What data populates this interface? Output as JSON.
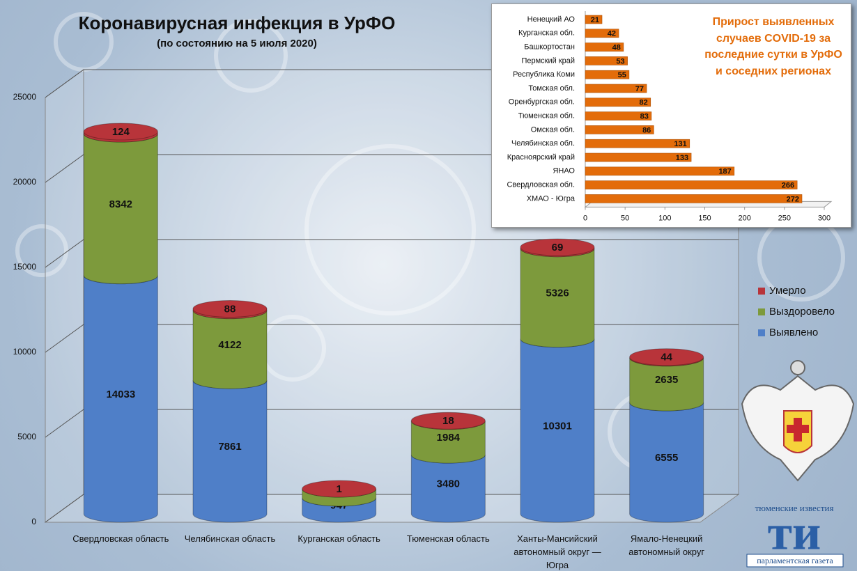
{
  "chart_data": [
    {
      "type": "bar",
      "stacked": true,
      "shape": "cylinder",
      "title": "Коронавирусная инфекция в УрФО",
      "subtitle": "(по состоянию на 5 июля 2020)",
      "categories": [
        "Свердловская область",
        "Челябинская область",
        "Курганская область",
        "Тюменская область",
        "Ханты-Мансийский автономный округ — Югра",
        "Ямало-Ненецкий автономный округ"
      ],
      "series": [
        {
          "name": "Выявлено",
          "color": "#4f7fc8",
          "values": [
            14033,
            7861,
            947,
            3480,
            10301,
            6555
          ]
        },
        {
          "name": "Выздоровело",
          "color": "#7d9a3c",
          "values": [
            8342,
            4122,
            528,
            1984,
            5326,
            2635
          ]
        },
        {
          "name": "Умерло",
          "color": "#b8343a",
          "values": [
            124,
            88,
            1,
            18,
            69,
            44
          ]
        }
      ],
      "ylim": [
        0,
        25000
      ],
      "yticks": [
        0,
        5000,
        10000,
        15000,
        20000,
        25000
      ],
      "grid": true,
      "legend": "right"
    },
    {
      "type": "bar",
      "orientation": "horizontal",
      "title": "Прирост выявленных случаев COVID-19 за последние сутки в УрФО и соседних регионах",
      "categories": [
        "Ненецкий АО",
        "Курганская обл.",
        "Башкортостан",
        "Пермский край",
        "Республика Коми",
        "Томская обл.",
        "Оренбургская обл.",
        "Тюменская обл.",
        "Омская обл.",
        "Челябинская обл.",
        "Красноярский край",
        "ЯНАО",
        "Свердловская обл.",
        "ХМАО - Югра"
      ],
      "values": [
        21,
        42,
        48,
        53,
        55,
        77,
        82,
        83,
        86,
        131,
        133,
        187,
        266,
        272
      ],
      "color": "#e36c0a",
      "xlim": [
        0,
        300
      ],
      "xticks": [
        0,
        50,
        100,
        150,
        200,
        250,
        300
      ]
    }
  ],
  "logo": {
    "top": "тюменские известия",
    "mark": "ти",
    "bottom": "парламентская газета"
  }
}
